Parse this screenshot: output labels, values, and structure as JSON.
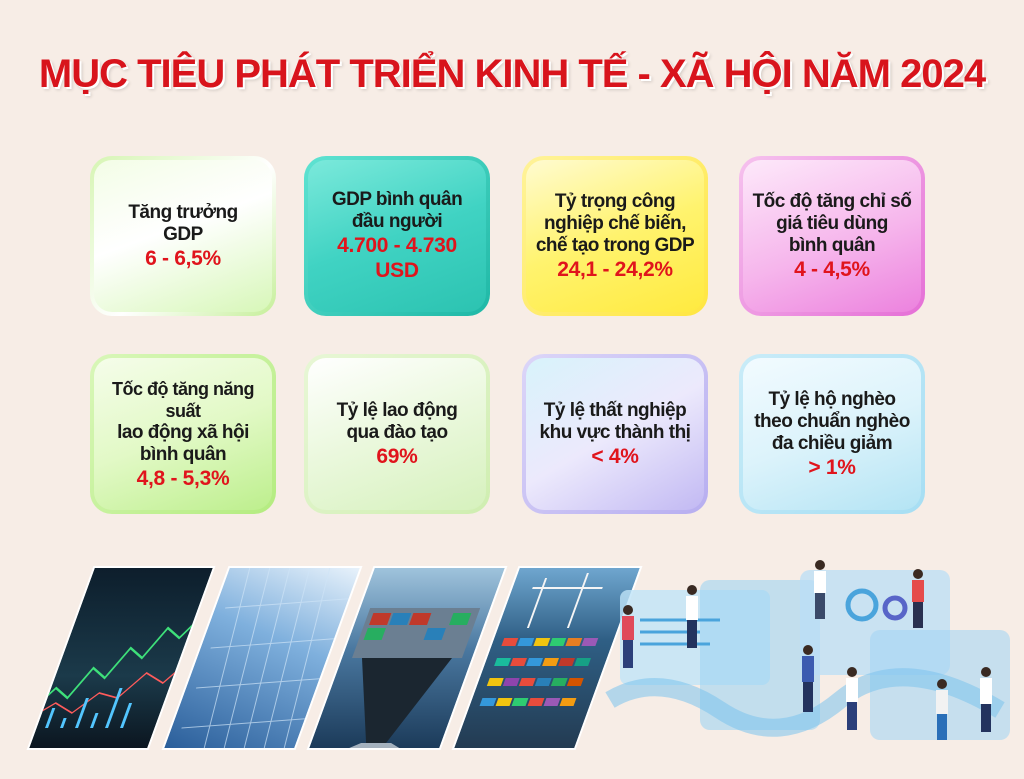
{
  "title": "MỤC TIÊU PHÁT TRIỂN KINH TẾ - XÃ HỘI NĂM 2024",
  "cards": [
    {
      "lines": [
        "Tăng trưởng",
        "GDP"
      ],
      "value": "6 - 6,5%"
    },
    {
      "lines": [
        "GDP bình quân",
        "đầu người"
      ],
      "value": "4.700 - 4.730",
      "value2": "USD"
    },
    {
      "lines": [
        "Tỷ trọng công",
        "nghiệp chế biến,",
        "chế tạo trong GDP"
      ],
      "value": "24,1 - 24,2%"
    },
    {
      "lines": [
        "Tốc độ tăng chỉ số",
        "giá tiêu dùng",
        "bình quân"
      ],
      "value": "4 - 4,5%"
    },
    {
      "lines": [
        "Tốc độ tăng năng suất",
        "lao động xã hội",
        "bình quân"
      ],
      "value": "4,8 - 5,3%"
    },
    {
      "lines": [
        "Tỷ lệ lao động",
        "qua đào tạo"
      ],
      "value": "69%"
    },
    {
      "lines": [
        "Tỷ lệ thất nghiệp",
        "khu vực thành thị"
      ],
      "value": "< 4%"
    },
    {
      "lines": [
        "Tỷ lệ hộ nghèo",
        "theo chuẩn nghèo",
        "đa chiều giảm"
      ],
      "value": "> 1%"
    }
  ],
  "colors": {
    "title": "#d8141c",
    "value": "#e0141c",
    "card_green": "#c8f0a0",
    "card_teal": "#3ecfc0",
    "card_yellow": "#fff36a",
    "card_pink": "#f3a9e8",
    "card_lavender": "#c9c2f3",
    "card_sky": "#b9e6f5"
  },
  "illustrations": [
    "stock-chart-photo",
    "skyscraper-photo",
    "cargo-ship-photo",
    "container-port-photo",
    "business-people-dashboard-illustration"
  ]
}
